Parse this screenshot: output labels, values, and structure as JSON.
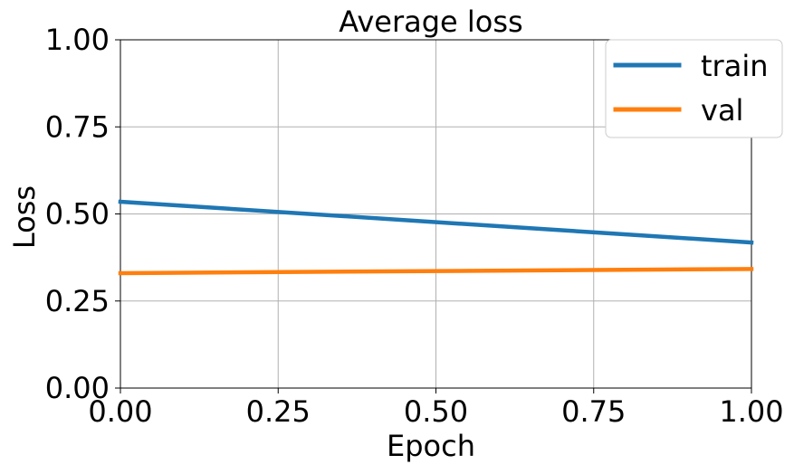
{
  "chart_data": {
    "type": "line",
    "title": "Average loss",
    "xlabel": "Epoch",
    "ylabel": "Loss",
    "x": [
      0,
      1
    ],
    "xlim": [
      0,
      1
    ],
    "ylim": [
      0,
      1
    ],
    "xticks": [
      "0.00",
      "0.25",
      "0.50",
      "0.75",
      "1.00"
    ],
    "yticks": [
      "0.00",
      "0.25",
      "0.50",
      "0.75",
      "1.00"
    ],
    "grid": true,
    "legend_position": "top-right",
    "series": [
      {
        "name": "train",
        "color": "#1f77b4",
        "values": [
          0.535,
          0.418
        ]
      },
      {
        "name": "val",
        "color": "#ff7f0e",
        "values": [
          0.33,
          0.342
        ]
      }
    ]
  }
}
